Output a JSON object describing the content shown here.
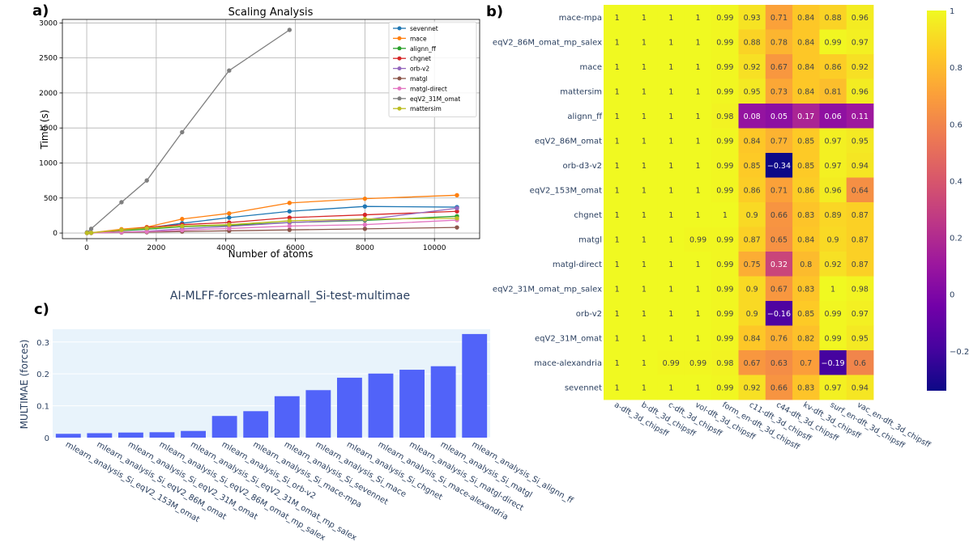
{
  "panels": {
    "a": "a)",
    "b": "b)",
    "c": "c)"
  },
  "colors": {
    "sevennet": "#1f77b4",
    "mace": "#ff7f0e",
    "alignn_ff": "#2ca02c",
    "chgnet": "#d62728",
    "orb-v2": "#9467bd",
    "matgl": "#8c564b",
    "matgl-direct": "#e377c2",
    "eqV2_31M_omat": "#7f7f7f",
    "mattersim": "#bcbd22",
    "bar": "#5163f9",
    "bar_bg": "#e8f3fb"
  },
  "chart_data": [
    {
      "id": "scaling",
      "type": "line",
      "title": "Scaling Analysis",
      "xlabel": "Number of atoms",
      "ylabel": "Time (s)",
      "xlim": [
        -700,
        11300
      ],
      "ylim": [
        -80,
        3050
      ],
      "xticks": [
        0,
        2000,
        4000,
        6000,
        8000,
        10000
      ],
      "yticks": [
        0,
        500,
        1000,
        1500,
        2000,
        2500,
        3000
      ],
      "legend_position": "top-right",
      "series": [
        {
          "name": "sevennet",
          "x": [
            8,
            128,
            1000,
            1728,
            2744,
            4096,
            5832,
            8000,
            10648
          ],
          "y": [
            1,
            2,
            40,
            70,
            140,
            220,
            310,
            380,
            370
          ]
        },
        {
          "name": "mace",
          "x": [
            8,
            128,
            1000,
            1728,
            2744,
            4096,
            5832,
            8000,
            10648
          ],
          "y": [
            2,
            4,
            55,
            85,
            200,
            280,
            430,
            490,
            540
          ]
        },
        {
          "name": "alignn_ff",
          "x": [
            8,
            128,
            1000,
            1728,
            2744,
            4096,
            5832,
            8000,
            10648
          ],
          "y": [
            1,
            2,
            35,
            55,
            90,
            110,
            150,
            180,
            240
          ]
        },
        {
          "name": "chgnet",
          "x": [
            8,
            128,
            1000,
            1728,
            2744,
            4096,
            5832,
            8000,
            10648
          ],
          "y": [
            1,
            2,
            40,
            80,
            120,
            150,
            220,
            260,
            310
          ]
        },
        {
          "name": "orb-v2",
          "x": [
            8,
            128,
            1000,
            1728,
            2744,
            4096,
            5832,
            8000,
            10648
          ],
          "y": [
            1,
            1,
            15,
            25,
            60,
            95,
            150,
            190,
            355
          ]
        },
        {
          "name": "matgl",
          "x": [
            8,
            128,
            1000,
            1728,
            2744,
            4096,
            5832,
            8000,
            10648
          ],
          "y": [
            1,
            1,
            8,
            12,
            22,
            32,
            45,
            60,
            80
          ]
        },
        {
          "name": "matgl-direct",
          "x": [
            8,
            128,
            1000,
            1728,
            2744,
            4096,
            5832,
            8000,
            10648
          ],
          "y": [
            1,
            1,
            12,
            20,
            40,
            65,
            100,
            120,
            185
          ]
        },
        {
          "name": "eqV2_31M_omat",
          "x": [
            8,
            128,
            1000,
            1728,
            2744,
            4096,
            5832
          ],
          "y": [
            10,
            60,
            440,
            750,
            1440,
            2320,
            2900
          ]
        },
        {
          "name": "mattersim",
          "x": [
            8,
            128,
            1000,
            1728,
            2744,
            4096,
            5832,
            8000,
            10648
          ],
          "y": [
            1,
            3,
            45,
            70,
            100,
            120,
            175,
            200,
            210
          ]
        }
      ]
    },
    {
      "id": "heatmap",
      "type": "heatmap",
      "rows": [
        "mace-mpa",
        "eqV2_86M_omat_mp_salex",
        "mace",
        "mattersim",
        "alignn_ff",
        "eqV2_86M_omat",
        "orb-d3-v2",
        "eqV2_153M_omat",
        "chgnet",
        "matgl",
        "matgl-direct",
        "eqV2_31M_omat_mp_salex",
        "orb-v2",
        "eqV2_31M_omat",
        "mace-alexandria",
        "sevennet"
      ],
      "columns": [
        "a-dft_3d_chipsff",
        "b-dft_3d_chipsff",
        "c-dft_3d_chipsff",
        "vol-dft_3d_chipsff",
        "form_en-dft_3d_chipsff",
        "c11-dft_3d_chipsff",
        "c44-dft_3d_chipsff",
        "kv-dft_3d_chipsff",
        "surf_en-dft_3d_chipsff",
        "vac_en-dft_3d_chipsff"
      ],
      "values": [
        [
          1,
          1,
          1,
          1,
          0.99,
          0.93,
          0.71,
          0.84,
          0.88,
          0.96
        ],
        [
          1,
          1,
          1,
          1,
          0.99,
          0.88,
          0.78,
          0.84,
          0.99,
          0.97
        ],
        [
          1,
          1,
          1,
          1,
          0.99,
          0.92,
          0.67,
          0.84,
          0.86,
          0.92
        ],
        [
          1,
          1,
          1,
          1,
          0.99,
          0.95,
          0.73,
          0.84,
          0.81,
          0.96
        ],
        [
          1,
          1,
          1,
          1,
          0.98,
          0.08,
          0.05,
          0.17,
          0.06,
          0.11
        ],
        [
          1,
          1,
          1,
          1,
          0.99,
          0.84,
          0.77,
          0.85,
          0.97,
          0.95
        ],
        [
          1,
          1,
          1,
          1,
          0.99,
          0.85,
          -0.34,
          0.85,
          0.97,
          0.94
        ],
        [
          1,
          1,
          1,
          1,
          0.99,
          0.86,
          0.71,
          0.86,
          0.96,
          0.64
        ],
        [
          1,
          1,
          1,
          1,
          1,
          0.9,
          0.66,
          0.83,
          0.89,
          0.87
        ],
        [
          1,
          1,
          1,
          0.99,
          0.99,
          0.87,
          0.65,
          0.84,
          0.9,
          0.87
        ],
        [
          1,
          1,
          1,
          1,
          0.99,
          0.75,
          0.32,
          0.8,
          0.92,
          0.87
        ],
        [
          1,
          1,
          1,
          1,
          0.99,
          0.9,
          0.67,
          0.83,
          1,
          0.98
        ],
        [
          1,
          1,
          1,
          1,
          0.99,
          0.9,
          -0.16,
          0.85,
          0.99,
          0.97
        ],
        [
          1,
          1,
          1,
          1,
          0.99,
          0.84,
          0.76,
          0.82,
          0.99,
          0.95
        ],
        [
          1,
          1,
          0.99,
          0.99,
          0.98,
          0.67,
          0.63,
          0.7,
          -0.19,
          0.6
        ],
        [
          1,
          1,
          1,
          1,
          0.99,
          0.92,
          0.66,
          0.83,
          0.97,
          0.94
        ]
      ],
      "zrange": [
        -0.34,
        1
      ],
      "colorbar_ticks": [
        1,
        0.8,
        0.6,
        0.4,
        0.2,
        0,
        -0.2
      ],
      "colorbar_labels": [
        "1",
        "0.8",
        "0.6",
        "0.4",
        "0.2",
        "0",
        "−0.2"
      ],
      "colorscale": [
        "#0d0887",
        "#46039f",
        "#7201a8",
        "#9c179e",
        "#bd3786",
        "#d8576b",
        "#ed7953",
        "#fb9f3a",
        "#fdca26",
        "#f0f921"
      ]
    },
    {
      "id": "multimae",
      "type": "bar",
      "title": "AI-MLFF-forces-mlearnall_Si-test-multimae",
      "ylabel": "MULTIMAE (forces)",
      "ylim": [
        0,
        0.34
      ],
      "yticks": [
        0,
        0.1,
        0.2,
        0.3
      ],
      "ytick_labels": [
        "0",
        "0.1",
        "0.2",
        "0.3"
      ],
      "categories": [
        "mlearn_analysis_Si_eqV2_153M_omat",
        "mlearn_analysis_Si_eqV2_86M_omat",
        "mlearn_analysis_Si_eqV2_31M_omat",
        "mlearn_analysis_Si_eqV2_86M_omat_mp_salex",
        "mlearn_analysis_Si_eqV2_31M_omat_mp_salex",
        "mlearn_analysis_Si_orb-v2",
        "mlearn_analysis_Si_mace-mpa",
        "mlearn_analysis_Si_sevennet",
        "mlearn_analysis_Si_mace",
        "mlearn_analysis_Si_chgnet",
        "mlearn_analysis_Si_mace-alexandria",
        "mlearn_analysis_Si_matgl-direct",
        "mlearn_analysis_Si_matgl",
        "mlearn_analysis_Si_alignn_ff"
      ],
      "values": [
        0.012,
        0.014,
        0.016,
        0.017,
        0.021,
        0.068,
        0.083,
        0.13,
        0.149,
        0.188,
        0.201,
        0.213,
        0.224,
        0.325
      ]
    }
  ]
}
